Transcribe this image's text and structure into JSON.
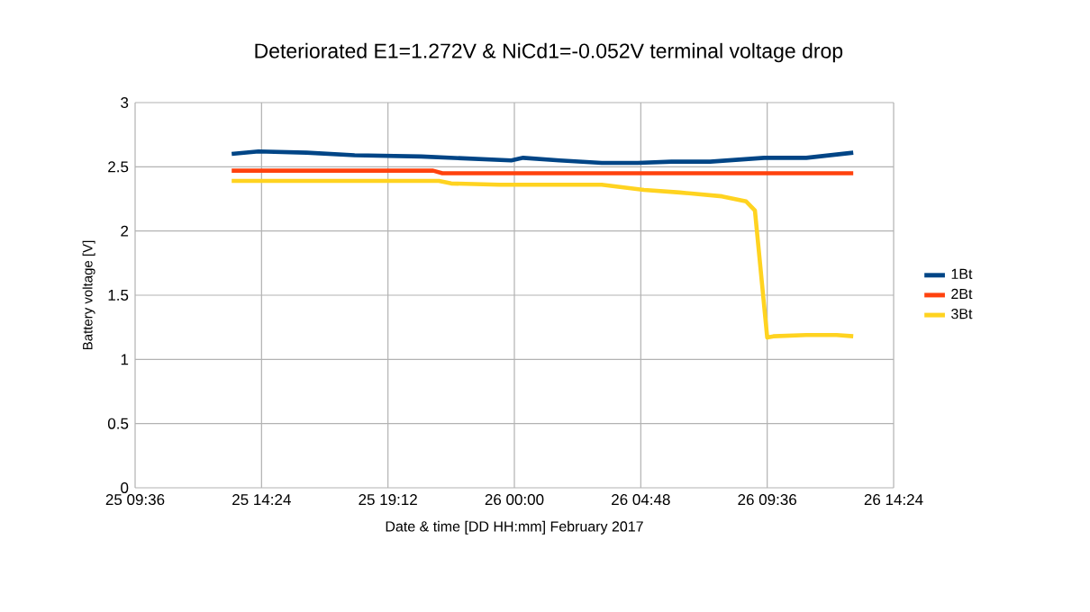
{
  "chart_data": {
    "type": "line",
    "title": "Deteriorated E1=1.272V & NiCd1=-0.052V terminal voltage drop",
    "xlabel": "Date & time [DD HH:mm] February 2017",
    "ylabel": "Battery voltage [V]",
    "xlim": [
      "2017-02-25T09:36",
      "2017-02-26T14:24"
    ],
    "xticks": [
      {
        "value": "2017-02-25T09:36",
        "label": "25 09:36"
      },
      {
        "value": "2017-02-25T14:24",
        "label": "25 14:24"
      },
      {
        "value": "2017-02-25T19:12",
        "label": "25 19:12"
      },
      {
        "value": "2017-02-26T00:00",
        "label": "26 00:00"
      },
      {
        "value": "2017-02-26T04:48",
        "label": "26 04:48"
      },
      {
        "value": "2017-02-26T09:36",
        "label": "26 09:36"
      },
      {
        "value": "2017-02-26T14:24",
        "label": "26 14:24"
      }
    ],
    "ylim": [
      0,
      3
    ],
    "yticks": [
      0,
      0.5,
      1,
      1.5,
      2,
      2.5,
      3
    ],
    "grid": true,
    "legend": "right",
    "marker": "none",
    "line_style": "solid",
    "series": [
      {
        "name": "1Bt",
        "color": "#004586",
        "x": [
          "2017-02-25T13:16",
          "2017-02-25T14:17",
          "2017-02-25T16:07",
          "2017-02-25T17:56",
          "2017-02-25T20:28",
          "2017-02-25T23:53",
          "2017-02-26T00:20",
          "2017-02-26T01:43",
          "2017-02-26T03:19",
          "2017-02-26T04:41",
          "2017-02-26T05:58",
          "2017-02-26T07:26",
          "2017-02-26T09:29",
          "2017-02-26T11:05",
          "2017-02-26T12:52"
        ],
        "values": [
          2.6,
          2.62,
          2.61,
          2.59,
          2.58,
          2.55,
          2.57,
          2.55,
          2.53,
          2.53,
          2.54,
          2.54,
          2.57,
          2.57,
          2.61
        ]
      },
      {
        "name": "2Bt",
        "color": "#ff420e",
        "x": [
          "2017-02-25T13:16",
          "2017-02-25T20:55",
          "2017-02-25T21:16",
          "2017-02-26T12:52"
        ],
        "values": [
          2.47,
          2.47,
          2.45,
          2.45
        ]
      },
      {
        "name": "3Bt",
        "color": "#ffd320",
        "x": [
          "2017-02-25T13:16",
          "2017-02-25T21:08",
          "2017-02-25T21:36",
          "2017-02-25T23:26",
          "2017-02-26T03:19",
          "2017-02-26T04:55",
          "2017-02-26T06:17",
          "2017-02-26T07:53",
          "2017-02-26T08:48",
          "2017-02-26T09:08",
          "2017-02-26T09:36",
          "2017-02-26T09:50",
          "2017-02-26T11:05",
          "2017-02-26T12:14",
          "2017-02-26T12:52"
        ],
        "values": [
          2.39,
          2.39,
          2.37,
          2.36,
          2.36,
          2.32,
          2.3,
          2.27,
          2.23,
          2.16,
          1.17,
          1.18,
          1.19,
          1.19,
          1.18
        ]
      }
    ]
  }
}
